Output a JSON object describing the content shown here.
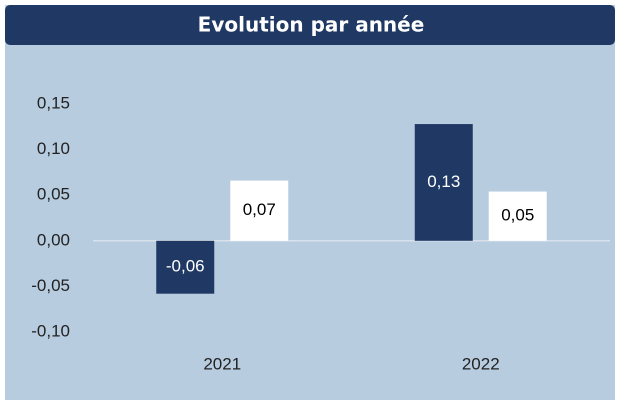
{
  "chart_data": {
    "type": "bar",
    "title": "Evolution par année",
    "categories": [
      "2021",
      "2022"
    ],
    "series": [
      {
        "color": "#1f3864",
        "values": [
          -0.058,
          0.128
        ],
        "value_labels": [
          "-0,06",
          "0,13"
        ]
      },
      {
        "color": "#ffffff",
        "values": [
          0.066,
          0.054
        ],
        "value_labels": [
          "0,07",
          "0,05"
        ]
      }
    ],
    "ylim": [
      -0.1,
      0.15
    ],
    "yticks": [
      {
        "value": 0.15,
        "label": "0,15"
      },
      {
        "value": 0.1,
        "label": "0,10"
      },
      {
        "value": 0.05,
        "label": "0,05"
      },
      {
        "value": 0,
        "label": "0,00"
      },
      {
        "value": -0.05,
        "label": "-0,05"
      },
      {
        "value": -0.1,
        "label": "-0,10"
      }
    ],
    "grid": false
  }
}
